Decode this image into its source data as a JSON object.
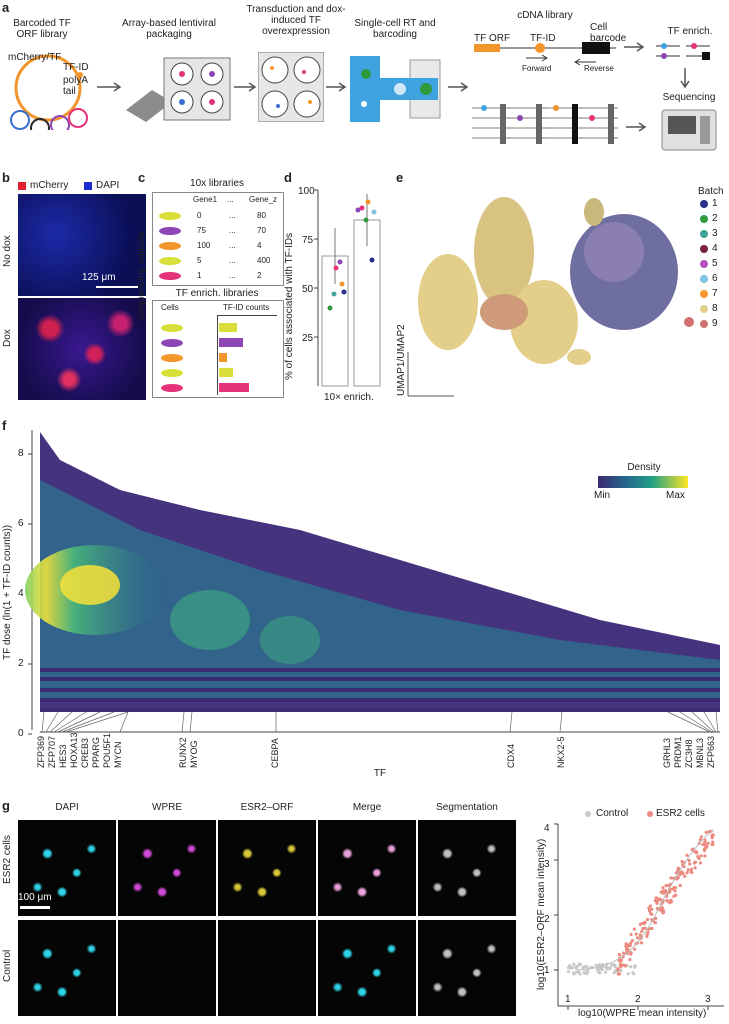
{
  "panels": [
    "a",
    "b",
    "c",
    "d",
    "e",
    "f",
    "g"
  ],
  "a": {
    "library_title": "Barcoded TF ORF library",
    "plasmid_labels": [
      "mCherry/TF",
      "TF-ID",
      "polyA tail"
    ],
    "step2": "Array-based lentiviral packaging",
    "step3": "Transduction and dox-induced TF overexpression",
    "step4": "Single-cell RT and barcoding",
    "cdna_title": "cDNA library",
    "cdna_labels": [
      "TF ORF",
      "TF-ID",
      "Cell barcode",
      "Forward",
      "Reverse"
    ],
    "enrich_title": "TF enrich.",
    "seq_title": "Sequencing"
  },
  "b": {
    "legend": [
      "mCherry",
      "DAPI"
    ],
    "legend_colors": [
      "#e0202a",
      "#1b2bd6"
    ],
    "rows": [
      "No dox",
      "Dox"
    ],
    "scale_bar": "125 μm"
  },
  "c": {
    "side_label": "Sequencing outputs",
    "title_top": "10x libraries",
    "col_headers": [
      "Gene1",
      "...",
      "Gene_z"
    ],
    "rows": [
      {
        "color": "#d9df3a",
        "g1": "0",
        "dots": "...",
        "gz": "80"
      },
      {
        "color": "#8e45b5",
        "g1": "75",
        "dots": "...",
        "gz": "70"
      },
      {
        "color": "#f2952c",
        "g1": "100",
        "dots": "...",
        "gz": "4"
      },
      {
        "color": "#d9df3a",
        "g1": "5",
        "dots": "...",
        "gz": "400"
      },
      {
        "color": "#e5337a",
        "g1": "1",
        "dots": "...",
        "gz": "2"
      }
    ],
    "title_bottom": "TF enrich. libraries",
    "cells_label": "Cells",
    "counts_label": "TF-ID counts"
  },
  "d": {
    "ylabel": "% of cells associated with TF-IDs",
    "xlabel": "10× enrich.",
    "yticks": [
      "25",
      "50",
      "75",
      "100"
    ]
  },
  "e": {
    "axis_label": "UMAP1/UMAP2",
    "legend_title": "Batch",
    "batches": [
      {
        "label": "1",
        "color": "#2b2f8c"
      },
      {
        "label": "2",
        "color": "#2e9a3c"
      },
      {
        "label": "3",
        "color": "#3fa59a"
      },
      {
        "label": "4",
        "color": "#7a2038"
      },
      {
        "label": "5",
        "color": "#b34fc0"
      },
      {
        "label": "6",
        "color": "#7fc4e0"
      },
      {
        "label": "7",
        "color": "#f2952c"
      },
      {
        "label": "8",
        "color": "#e3cf8a"
      },
      {
        "label": "9",
        "color": "#d07070"
      }
    ]
  },
  "f": {
    "ylabel": "TF dose (ln(1 + TF-ID counts))",
    "xlabel": "TF",
    "yticks": [
      "0",
      "2",
      "4",
      "6",
      "8"
    ],
    "density_title": "Density",
    "density_min": "Min",
    "density_max": "Max",
    "tf_labels_left": [
      "ZFP369",
      "ZFP707",
      "HES3",
      "HOXA13",
      "CREB3",
      "PPARG",
      "POU5F1",
      "MYCN"
    ],
    "tf_labels_mid1": [
      "RUNX2",
      "MYOG"
    ],
    "tf_labels_mid2": [
      "CEBPA"
    ],
    "tf_labels_mid3": [
      "CDX4",
      "NKX2-5"
    ],
    "tf_labels_right": [
      "GRHL3",
      "PRDM1",
      "ZC3H8",
      "MBNL3",
      "ZFP663"
    ]
  },
  "g": {
    "columns": [
      "DAPI",
      "WPRE",
      "ESR2–ORF",
      "Merge",
      "Segmentation"
    ],
    "rows": [
      "ESR2 cells",
      "Control"
    ],
    "scale_bar": "100 μm",
    "legend": [
      "Control",
      "ESR2 cells"
    ],
    "legend_colors": [
      "#c8c8c8",
      "#ec8a80"
    ],
    "ylabel": "log10(ESR2–ORF mean intensity)",
    "xlabel": "log10(WPRE mean intensity)",
    "xticks": [
      "1",
      "2",
      "3"
    ],
    "yticks": [
      "1",
      "2",
      "3",
      "4"
    ]
  }
}
